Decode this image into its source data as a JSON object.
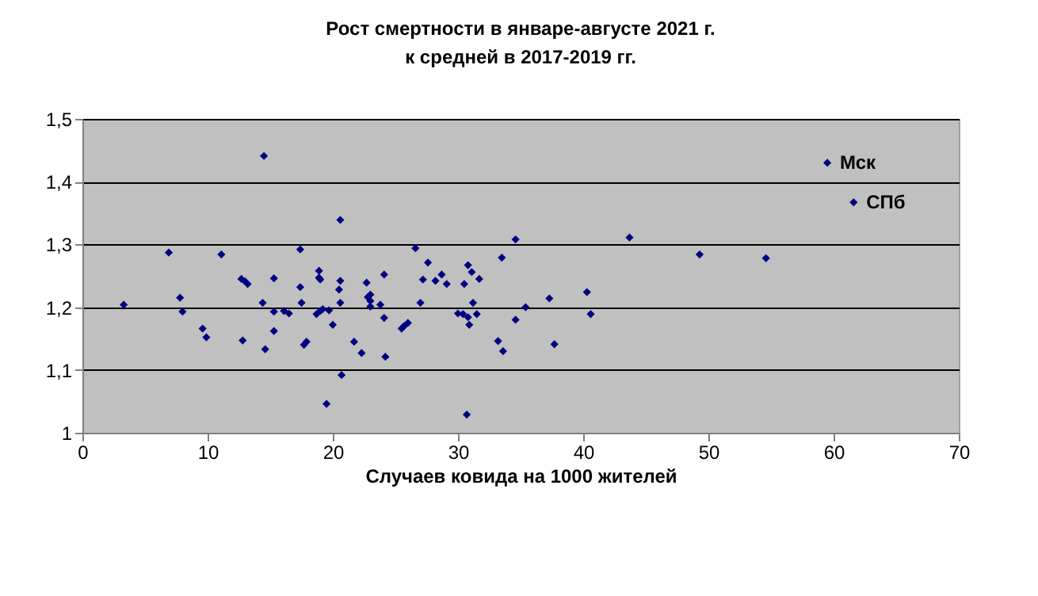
{
  "chart_data": {
    "type": "scatter",
    "title": "Рост смертности в январе-августе 2021 г.",
    "subtitle": "к средней в 2017-2019 гг.",
    "xlabel": "Случаев ковида на 1000 жителей",
    "x": [
      3.3,
      6.9,
      7.8,
      8.0,
      9.6,
      9.9,
      11.1,
      12.7,
      13.0,
      13.2,
      12.8,
      14.5,
      14.4,
      14.6,
      15.3,
      15.3,
      15.3,
      16.1,
      16.5,
      17.4,
      17.4,
      17.5,
      17.7,
      17.9,
      18.9,
      18.9,
      19.0,
      18.7,
      19.0,
      19.2,
      19.5,
      19.7,
      20.0,
      20.6,
      20.6,
      20.5,
      20.6,
      20.7,
      21.7,
      22.3,
      22.7,
      22.8,
      23.0,
      23.0,
      23.0,
      23.8,
      24.1,
      24.1,
      24.2,
      25.5,
      25.7,
      26.0,
      26.6,
      27.6,
      27.2,
      27.0,
      28.2,
      28.7,
      29.1,
      30.0,
      30.4,
      30.5,
      30.8,
      31.1,
      31.7,
      31.2,
      31.5,
      30.8,
      30.9,
      30.7,
      33.2,
      33.6,
      33.5,
      34.6,
      34.6,
      35.4,
      37.3,
      37.7,
      40.3,
      40.6,
      43.7,
      49.3,
      54.6,
      59.5,
      61.6
    ],
    "values": [
      1.204,
      1.287,
      1.215,
      1.193,
      1.166,
      1.152,
      1.284,
      1.245,
      1.241,
      1.237,
      1.147,
      1.441,
      1.207,
      1.133,
      1.246,
      1.193,
      1.162,
      1.194,
      1.19,
      1.292,
      1.232,
      1.207,
      1.14,
      1.145,
      1.258,
      1.247,
      1.244,
      1.189,
      1.194,
      1.197,
      1.046,
      1.195,
      1.172,
      1.339,
      1.242,
      1.228,
      1.207,
      1.092,
      1.145,
      1.127,
      1.239,
      1.216,
      1.22,
      1.201,
      1.21,
      1.204,
      1.252,
      1.183,
      1.121,
      1.166,
      1.17,
      1.175,
      1.294,
      1.271,
      1.244,
      1.207,
      1.242,
      1.252,
      1.237,
      1.19,
      1.189,
      1.237,
      1.267,
      1.256,
      1.245,
      1.207,
      1.189,
      1.184,
      1.172,
      1.029,
      1.146,
      1.13,
      1.279,
      1.308,
      1.18,
      1.2,
      1.214,
      1.141,
      1.224,
      1.189,
      1.311,
      1.284,
      1.278,
      1.43,
      1.367
    ],
    "color": "#000080",
    "marker": "diamond",
    "xlim": [
      0,
      70
    ],
    "xticks": [
      0,
      10,
      20,
      30,
      40,
      50,
      60,
      70
    ],
    "ylim": [
      1,
      1.5
    ],
    "yticks": [
      {
        "value": 1,
        "label": "1"
      },
      {
        "value": 1.1,
        "label": "1,1"
      },
      {
        "value": 1.2,
        "label": "1,2"
      },
      {
        "value": 1.3,
        "label": "1,3"
      },
      {
        "value": 1.4,
        "label": "1,4"
      },
      {
        "value": 1.5,
        "label": "1,5"
      }
    ],
    "grid": "y",
    "annotations": [
      {
        "text": "Мск",
        "x": 59.5,
        "y": 1.43
      },
      {
        "text": "СПб",
        "x": 61.6,
        "y": 1.367
      }
    ]
  }
}
